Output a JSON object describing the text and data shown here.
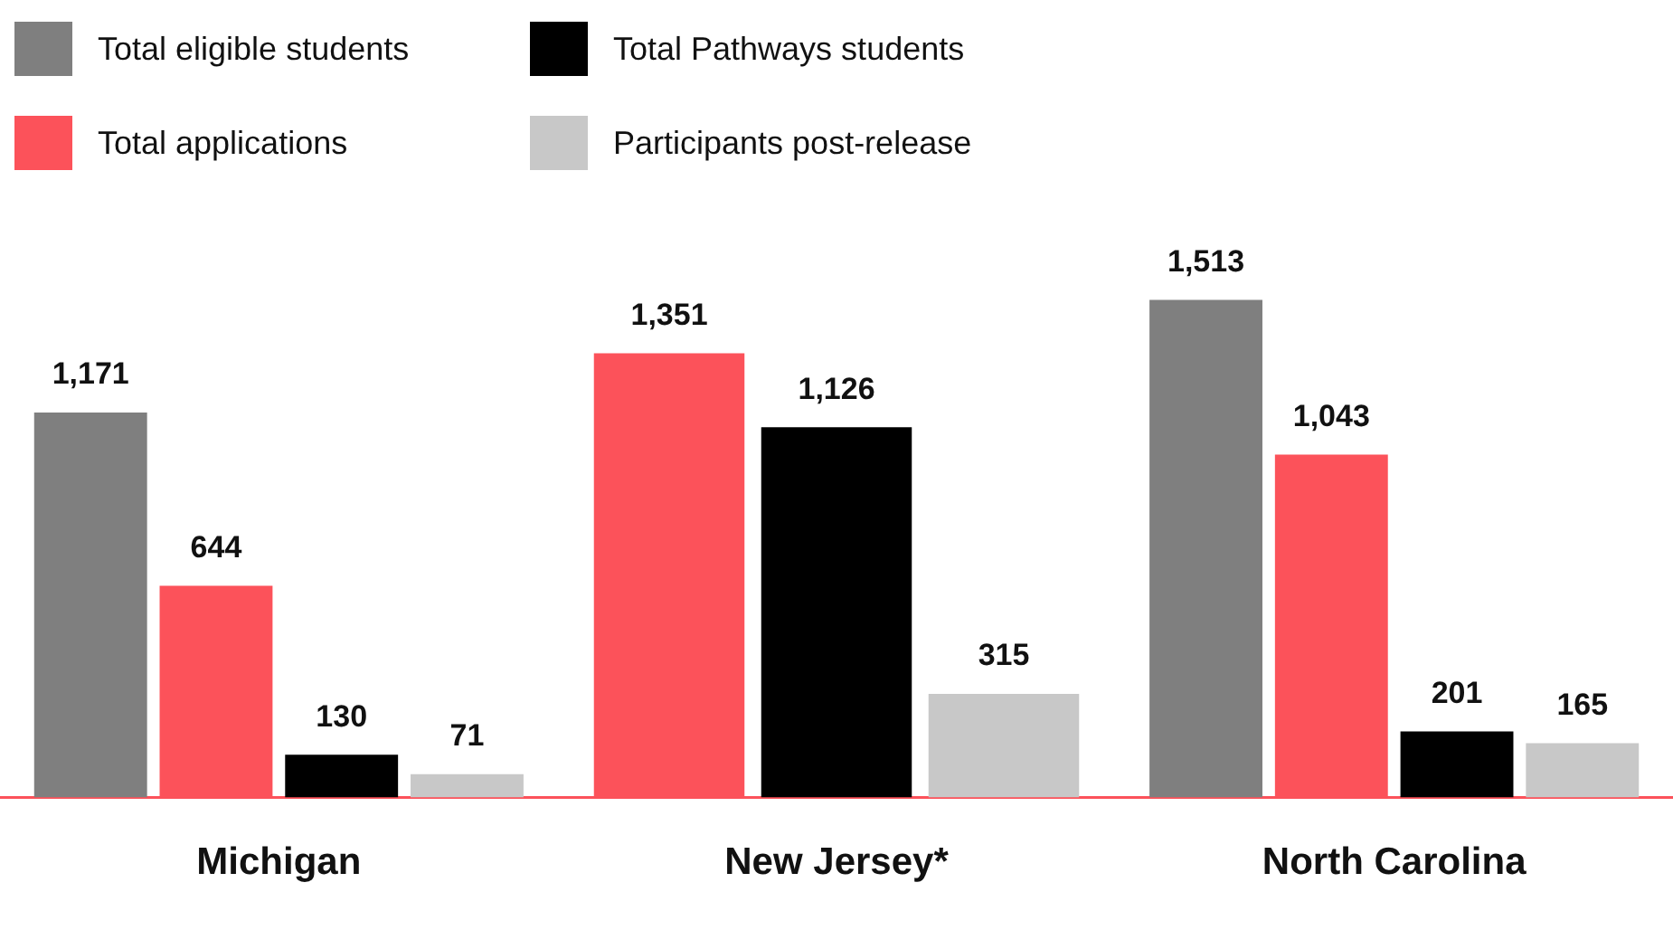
{
  "chart_data": {
    "type": "bar",
    "categories": [
      "Michigan",
      "New Jersey*",
      "North Carolina"
    ],
    "series": [
      {
        "name": "Total eligible students",
        "color": "#7f7f7f",
        "values": [
          1171,
          null,
          1513
        ],
        "value_labels": [
          "1,171",
          null,
          "1,513"
        ]
      },
      {
        "name": "Total applications",
        "color": "#fc525a",
        "values": [
          644,
          1351,
          1043
        ],
        "value_labels": [
          "644",
          "1,351",
          "1,043"
        ]
      },
      {
        "name": "Total Pathways students",
        "color": "#000000",
        "values": [
          130,
          1126,
          201
        ],
        "value_labels": [
          "130",
          "1,126",
          "201"
        ]
      },
      {
        "name": "Participants post-release",
        "color": "#c8c8c8",
        "values": [
          71,
          315,
          165
        ],
        "value_labels": [
          "71",
          "315",
          "165"
        ]
      }
    ],
    "legend": "top left",
    "grid": false
  }
}
